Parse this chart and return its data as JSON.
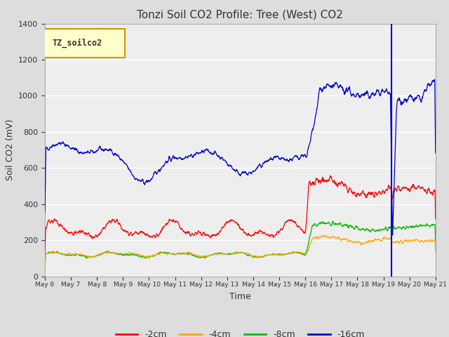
{
  "title": "Tonzi Soil CO2 Profile: Tree (West) CO2",
  "ylabel": "Soil CO2 (mV)",
  "xlabel": "Time",
  "ylim": [
    0,
    1400
  ],
  "background_color": "#dddddd",
  "plot_bg_color": "#eeeeee",
  "legend_label": "TZ_soilco2",
  "legend_bg": "#ffffcc",
  "legend_border": "#cc9900",
  "series_labels": [
    "-2cm",
    "-4cm",
    "-8cm",
    "-16cm"
  ],
  "series_colors": [
    "#ff0000",
    "#ffa500",
    "#00bb00",
    "#0000cc"
  ],
  "x_tick_labels": [
    "May 6",
    "May 7",
    "May 8",
    "May 9",
    "May 10",
    "May 11",
    "May 12",
    "May 13",
    "May 14",
    "May 15",
    "May 16",
    "May 17",
    "May 18",
    "May 19",
    "May 20",
    "May 21"
  ],
  "n_points": 1500,
  "seed": 42,
  "vline_day": 13.3
}
